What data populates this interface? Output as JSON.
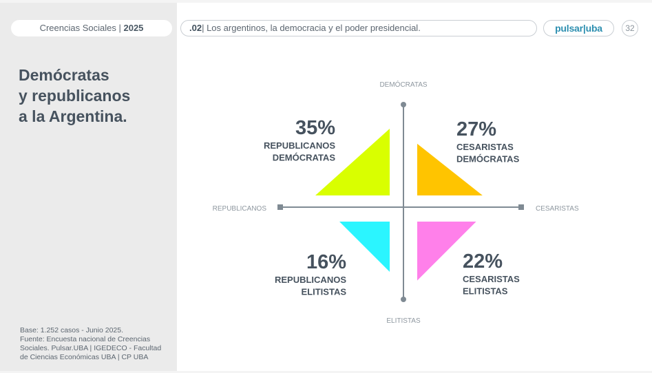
{
  "header": {
    "report_label": "Creencias Sociales",
    "report_year": "2025",
    "section_number": ".02",
    "section_title": "Los argentinos, la democracia y el poder presidencial.",
    "logo_text": "pulsar|uba",
    "page_number": "32"
  },
  "sidebar": {
    "title_lines": [
      "Demócratas",
      "y republicanos",
      "a la Argentina."
    ],
    "footnote_lines": [
      "Base: 1.252 casos - Junio 2025.",
      "Fuente: Encuesta nacional de Creencias",
      "Sociales. Pulsar.UBA | IGEDECO - Facultad",
      "de Ciencias Económicas UBA | CP UBA"
    ]
  },
  "chart_data": {
    "type": "quadrant",
    "axes": {
      "top": "DEMÓCRATAS",
      "bottom": "ELITISTAS",
      "left": "REPUBLICANOS",
      "right": "CESARISTAS"
    },
    "quadrants": [
      {
        "key": "top-left",
        "value": 35,
        "value_label": "35%",
        "label_lines": [
          "REPUBLICANOS",
          "DEMÓCRATAS"
        ],
        "color": "#d9ff00"
      },
      {
        "key": "top-right",
        "value": 27,
        "value_label": "27%",
        "label_lines": [
          "CESARISTAS",
          "DEMÓCRATAS"
        ],
        "color": "#ffc400"
      },
      {
        "key": "bottom-left",
        "value": 16,
        "value_label": "16%",
        "label_lines": [
          "REPUBLICANOS",
          "ELITISTAS"
        ],
        "color": "#2bf5ff"
      },
      {
        "key": "bottom-right",
        "value": 22,
        "value_label": "22%",
        "label_lines": [
          "CESARISTAS",
          "ELITISTAS"
        ],
        "color": "#ff80ea"
      }
    ],
    "colors": {
      "axis": "#7f8a93",
      "axis_label": "#8e979f",
      "value_text": "#46525e"
    }
  }
}
